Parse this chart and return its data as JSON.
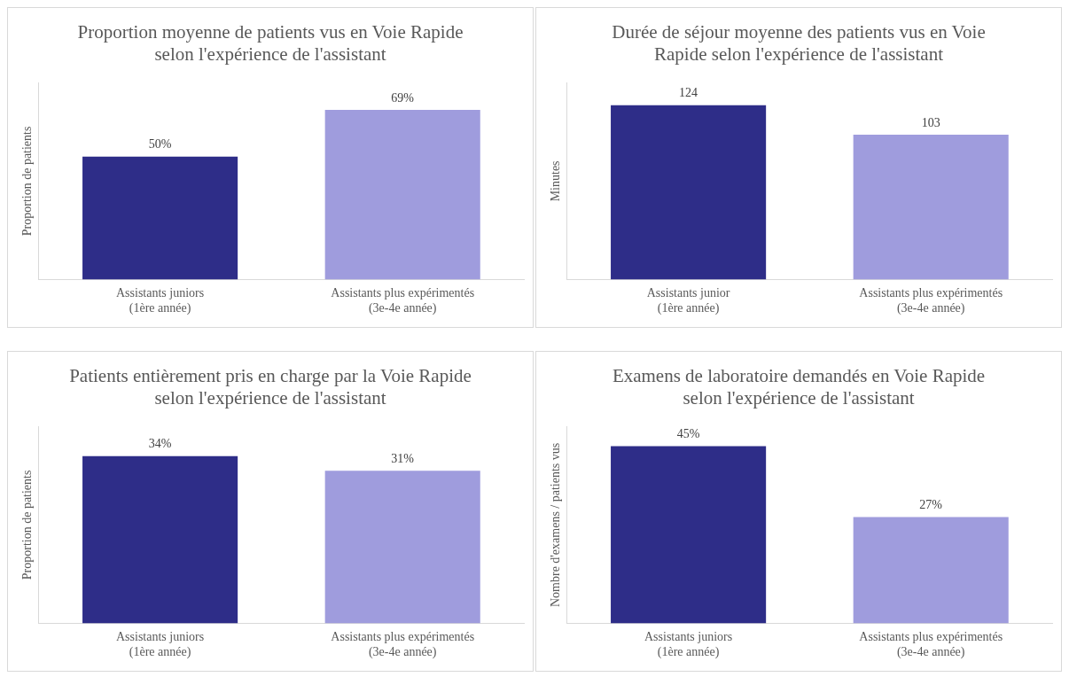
{
  "chart_data": [
    {
      "type": "bar",
      "title": "Proportion moyenne de patients vus en Voie Rapide selon l'expérience de l'assistant",
      "ylabel": "Proportion de patients",
      "categories": [
        "Assistants juniors (1ère année)",
        "Assistants plus expérimentés (3e-4e année)"
      ],
      "values": [
        50,
        69
      ],
      "value_labels": [
        "50%",
        "69%"
      ],
      "colors": [
        "#2e2d88",
        "#9f9cdd"
      ],
      "grid": false,
      "legend": false,
      "tick_labels": "x"
    },
    {
      "type": "bar",
      "title": "Durée de séjour moyenne des patients vus en Voie Rapide selon l'expérience de l'assistant",
      "ylabel": "Minutes",
      "categories": [
        "Assistants junior (1ère année)",
        "Assistants plus expérimentés (3e-4e année)"
      ],
      "values": [
        124,
        103
      ],
      "data_labels": true,
      "colors": [
        "#2e2d88",
        "#9f9cdd"
      ],
      "grid": false,
      "legend": false,
      "tick_labels": "x"
    },
    {
      "type": "bar",
      "title": "Patients entièrement pris en charge par la Voie Rapide selon l'expérience de l'assistant",
      "ylabel": "Proportion de patients",
      "categories": [
        "Assistants juniors (1ère année)",
        "Assistants plus expérimentés (3e-4e année)"
      ],
      "values": [
        34,
        31
      ],
      "value_labels": [
        "34%",
        "31%"
      ],
      "colors": [
        "#2e2d88",
        "#9f9cdd"
      ],
      "grid": false,
      "legend": false,
      "tick_labels": "x"
    },
    {
      "type": "bar",
      "title": "Examens de laboratoire demandés en Voie Rapide selon l'expérience de l'assistant",
      "ylabel": "Nombre d'examens / patients vus",
      "categories": [
        "Assistants juniors (1ère année)",
        "Assistants plus expérimentés (3e-4e année)"
      ],
      "values": [
        45,
        27
      ],
      "value_labels": [
        "45%",
        "27%"
      ],
      "colors": [
        "#2e2d88",
        "#9f9cdd"
      ],
      "grid": false,
      "legend": false,
      "tick_labels": "x"
    }
  ]
}
